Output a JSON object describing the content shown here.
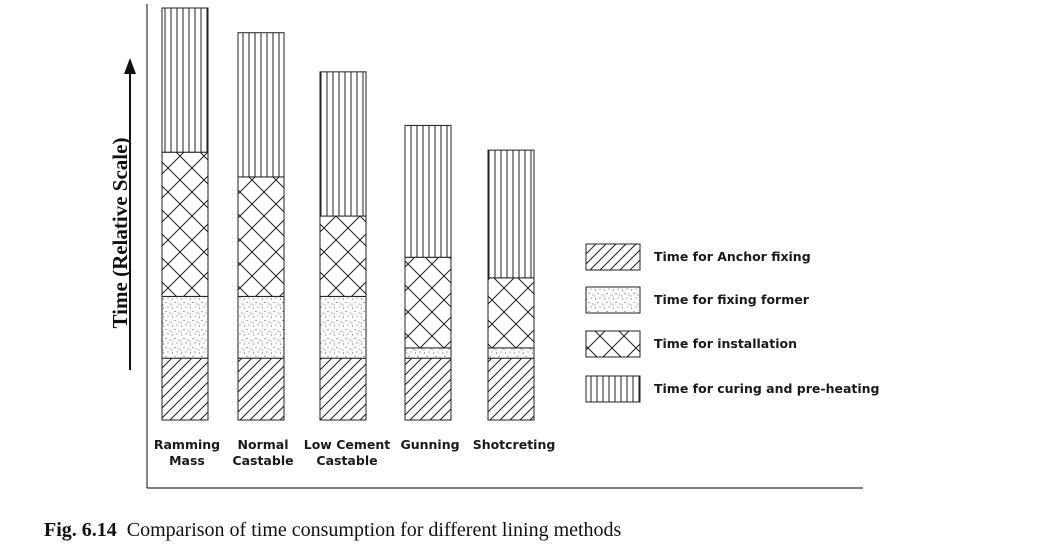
{
  "chart_data": {
    "type": "bar",
    "stacked": true,
    "title": "",
    "xlabel": "",
    "ylabel": "Time (Relative Scale)",
    "categories": [
      [
        "Ramming",
        "Mass"
      ],
      [
        "Normal",
        "Castable"
      ],
      [
        "Low Cement",
        "Castable"
      ],
      [
        "Gunning"
      ],
      [
        "Shotcreting"
      ]
    ],
    "series": [
      {
        "name": "Time for Anchor fixing",
        "pattern": "diagonal-hatch",
        "values": [
          15,
          15,
          15,
          15,
          15
        ]
      },
      {
        "name": "Time for fixing former",
        "pattern": "dotted",
        "values": [
          15,
          15,
          15,
          2.5,
          2.5
        ]
      },
      {
        "name": "Time for installation",
        "pattern": "cross-hatch",
        "values": [
          35,
          29,
          19.5,
          22,
          17
        ]
      },
      {
        "name": "Time for curing and pre-heating",
        "pattern": "vertical-lines",
        "values": [
          35,
          35,
          35,
          32,
          31
        ]
      }
    ],
    "ylim": [
      0,
      100
    ],
    "legend_position": "right",
    "grid": false
  },
  "caption": {
    "number": "Fig. 6.14",
    "text": "Comparison of time consumption for different lining methods"
  }
}
